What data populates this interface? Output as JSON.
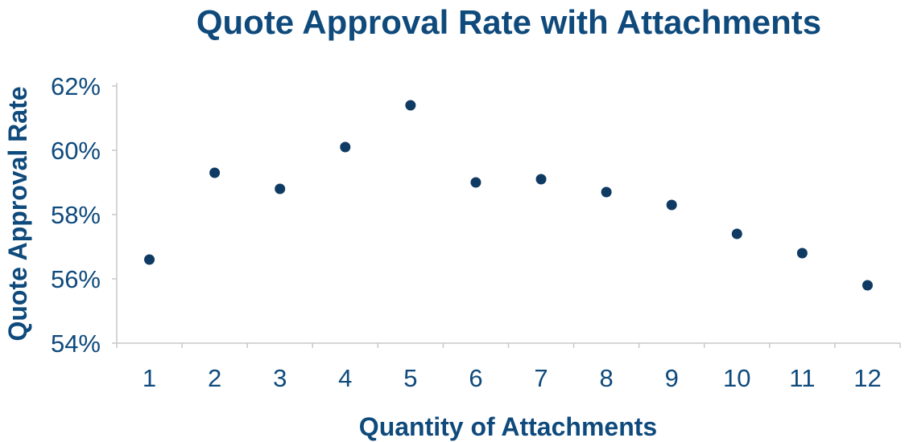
{
  "chart_data": {
    "type": "scatter",
    "title": "Quote Approval Rate with Attachments",
    "xlabel": "Quantity of Attachments",
    "ylabel": "Quote Approval Rate",
    "x": [
      1,
      2,
      3,
      4,
      5,
      6,
      7,
      8,
      9,
      10,
      11,
      12
    ],
    "y": [
      56.6,
      59.3,
      58.8,
      60.1,
      61.4,
      59.0,
      59.1,
      58.7,
      58.3,
      57.4,
      56.8,
      55.8
    ],
    "x_tick_labels": [
      "1",
      "2",
      "3",
      "4",
      "5",
      "6",
      "7",
      "8",
      "9",
      "10",
      "11",
      "12"
    ],
    "y_ticks": [
      54,
      56,
      58,
      60,
      62
    ],
    "y_tick_labels": [
      "54%",
      "56%",
      "58%",
      "60%",
      "62%"
    ],
    "ylim": [
      54,
      62
    ],
    "grid": false,
    "legend": "none",
    "marker_color": "#0f3a63",
    "text_color": "#0f4a7c",
    "axis_color": "#c8c8c8"
  }
}
